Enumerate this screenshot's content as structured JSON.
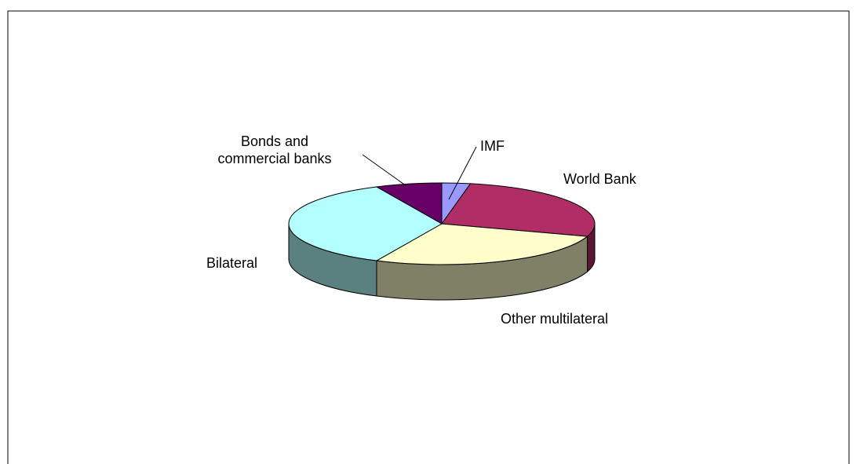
{
  "chart_data": {
    "type": "pie3d",
    "categories": [
      "IMF",
      "World Bank",
      "Other multilateral",
      "Bilateral",
      "Bonds and commercial banks"
    ],
    "values": [
      3,
      27,
      27,
      36,
      7
    ],
    "colors": [
      "#9999ff",
      "#b02d66",
      "#ffffcc",
      "#b3ffff",
      "#660066"
    ],
    "side_colors": [
      "#4d4d80",
      "#5a1633",
      "#808066",
      "#5a8080",
      "#330033"
    ]
  }
}
